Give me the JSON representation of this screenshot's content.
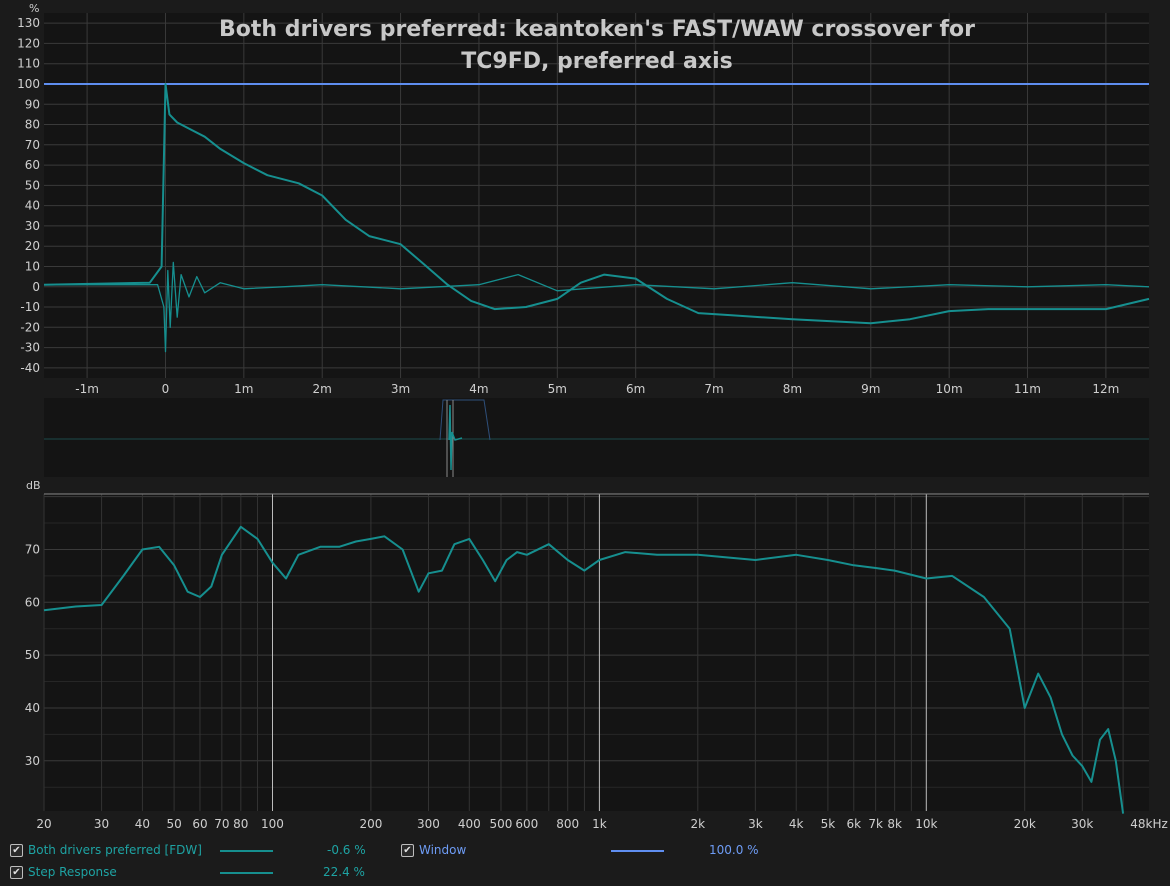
{
  "title": "Both drivers preferred: keantoken's FAST/WAW crossover for TC9FD, preferred axis",
  "colors": {
    "background": "#1b1b1b",
    "plot_bg": "#141414",
    "grid": "#3a3a3a",
    "trace": "#168f8f",
    "window": "#5f8ef0",
    "text": "#cfcfcf"
  },
  "chart_data": [
    {
      "type": "line",
      "ylabel": "%",
      "ylim": [
        -45,
        135
      ],
      "yticks": [
        130,
        120,
        110,
        100,
        90,
        80,
        70,
        60,
        50,
        40,
        30,
        20,
        10,
        0,
        -10,
        -20,
        -30,
        -40
      ],
      "xlim": [
        -1.55,
        12.55
      ],
      "xticks": [
        -1,
        0,
        1,
        2,
        3,
        4,
        5,
        6,
        7,
        8,
        9,
        10,
        11,
        12
      ],
      "xtick_labels": [
        "-1m",
        "0",
        "1m",
        "2m",
        "3m",
        "4m",
        "5m",
        "6m",
        "7m",
        "8m",
        "9m",
        "10m",
        "11m",
        "12m"
      ],
      "grid": true,
      "series": [
        {
          "name": "Window",
          "x": [
            -1.55,
            12.55
          ],
          "y": [
            100,
            100
          ]
        },
        {
          "name": "Step Response",
          "x": [
            -1.55,
            -0.2,
            -0.05,
            0.0,
            0.05,
            0.15,
            0.3,
            0.5,
            0.7,
            1.0,
            1.3,
            1.7,
            2.0,
            2.3,
            2.6,
            3.0,
            3.3,
            3.6,
            3.9,
            4.2,
            4.6,
            5.0,
            5.3,
            5.6,
            6.0,
            6.4,
            6.8,
            7.2,
            7.6,
            8.0,
            8.5,
            9.0,
            9.5,
            10.0,
            10.5,
            11.0,
            11.5,
            12.0,
            12.55
          ],
          "y": [
            1,
            2,
            10,
            100,
            85,
            81,
            78,
            74,
            68,
            61,
            55,
            51,
            45,
            33,
            25,
            21,
            11,
            1,
            -7,
            -11,
            -10,
            -6,
            2,
            6,
            4,
            -6,
            -13,
            -14,
            -15,
            -16,
            -17,
            -18,
            -16,
            -12,
            -11,
            -11,
            -11,
            -11,
            -6
          ]
        },
        {
          "name": "Both drivers preferred [FDW]",
          "x": [
            -1.55,
            -0.1,
            -0.02,
            0.0,
            0.03,
            0.06,
            0.1,
            0.15,
            0.2,
            0.3,
            0.4,
            0.5,
            0.7,
            1.0,
            1.5,
            2.0,
            3.0,
            4.0,
            4.5,
            5.0,
            6.0,
            7.0,
            8.0,
            9.0,
            10.0,
            11.0,
            12.0,
            12.55
          ],
          "y": [
            1,
            1,
            -10,
            -32,
            8,
            -20,
            12,
            -15,
            6,
            -5,
            5,
            -3,
            2,
            -1,
            0,
            1,
            -1,
            1,
            6,
            -2,
            1,
            -1,
            2,
            -1,
            1,
            0,
            1,
            0
          ]
        }
      ]
    },
    {
      "type": "line",
      "ylabel": "dB",
      "ylim": [
        20.5,
        80.5
      ],
      "yticks": [
        70,
        60,
        50,
        40,
        30
      ],
      "xscale": "log",
      "xlim": [
        20,
        48000
      ],
      "xticks": [
        20,
        30,
        40,
        50,
        60,
        70,
        80,
        100,
        200,
        300,
        400,
        500,
        600,
        800,
        1000,
        2000,
        3000,
        4000,
        5000,
        6000,
        7000,
        8000,
        10000,
        20000,
        30000,
        48000
      ],
      "xtick_labels": [
        "20",
        "30",
        "40",
        "50",
        "60",
        "70",
        "80",
        "100",
        "200",
        "300",
        "400",
        "500",
        "600",
        "800",
        "1k",
        "2k",
        "3k",
        "4k",
        "5k",
        "6k",
        "7k",
        "8k",
        "10k",
        "20k",
        "30k",
        "48kHz"
      ],
      "grid": true,
      "series": [
        {
          "name": "Both drivers preferred [FDW]",
          "x": [
            20,
            25,
            30,
            35,
            40,
            45,
            50,
            55,
            60,
            65,
            70,
            80,
            90,
            100,
            110,
            120,
            140,
            160,
            180,
            200,
            220,
            250,
            280,
            300,
            330,
            360,
            400,
            440,
            480,
            520,
            560,
            600,
            700,
            800,
            900,
            1000,
            1200,
            1500,
            2000,
            3000,
            4000,
            5000,
            6000,
            7000,
            8000,
            10000,
            12000,
            15000,
            18000,
            20000,
            22000,
            24000,
            26000,
            28000,
            30000,
            32000,
            34000,
            36000,
            38000,
            40000
          ],
          "y": [
            58.5,
            59.2,
            59.5,
            65,
            70,
            70.5,
            67,
            62,
            61,
            63,
            69,
            74.3,
            72,
            67.5,
            64.5,
            69,
            70.5,
            70.5,
            71.5,
            72,
            72.5,
            70,
            62,
            65.5,
            66,
            71,
            72,
            68,
            64,
            68,
            69.5,
            69,
            71,
            68,
            66,
            68,
            69.5,
            69,
            69,
            68,
            69,
            68,
            67,
            66.5,
            66,
            64.5,
            65,
            61,
            55,
            40,
            46.5,
            42,
            35,
            31,
            29,
            26,
            34,
            36,
            30,
            20
          ]
        }
      ]
    }
  ],
  "legend": {
    "fdw": {
      "label": "Both drivers preferred [FDW]",
      "value": "-0.6 %",
      "checked": "✔"
    },
    "window": {
      "label": "Window",
      "value": "100.0 %",
      "checked": "✔"
    },
    "step": {
      "label": "Step Response",
      "value": "22.4 %",
      "checked": "✔"
    }
  }
}
